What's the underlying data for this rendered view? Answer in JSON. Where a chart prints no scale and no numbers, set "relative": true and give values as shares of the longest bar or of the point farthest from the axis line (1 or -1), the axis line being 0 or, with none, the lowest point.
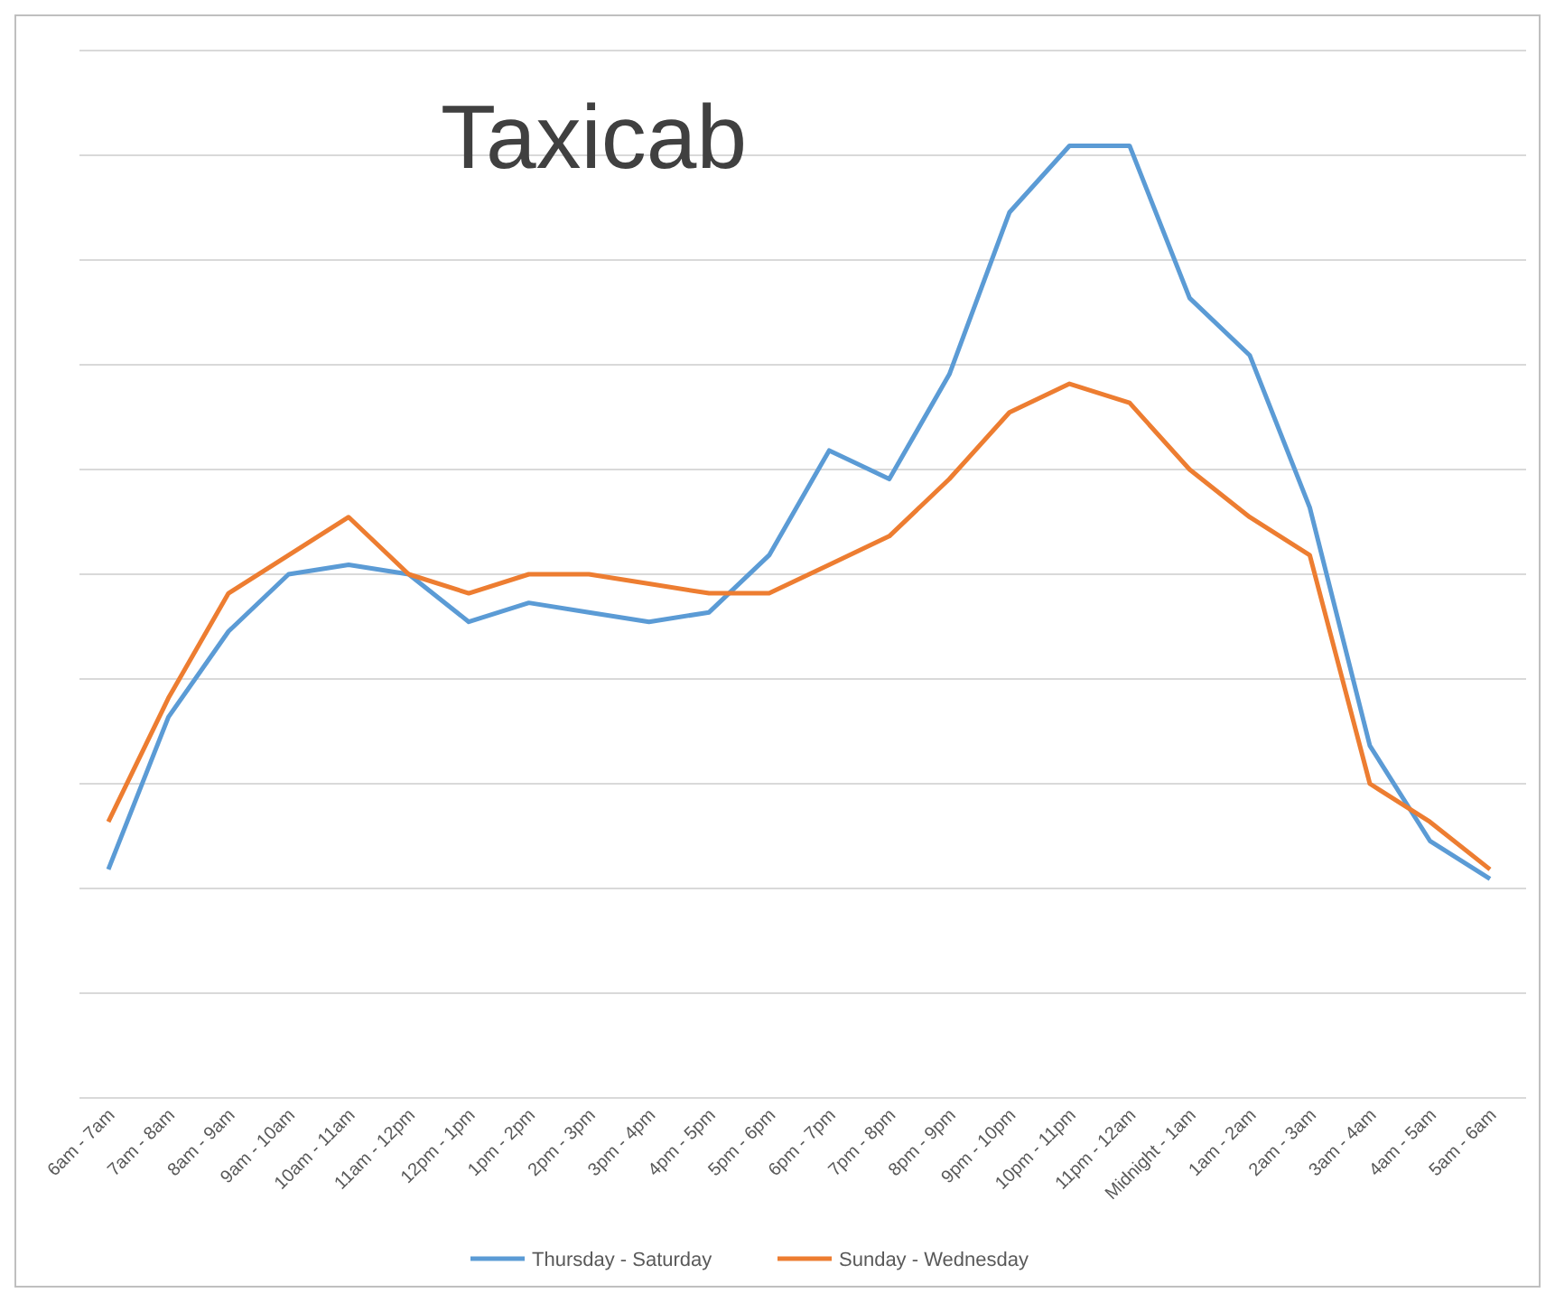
{
  "chart_data": {
    "type": "line",
    "title": "Taxicab",
    "relative": true,
    "grid": "y",
    "legend": "bottom",
    "marker": "none",
    "line_style": "solid",
    "categories": [
      "6am - 7am",
      "7am - 8am",
      "8am - 9am",
      "9am - 10am",
      "10am - 11am",
      "11am - 12pm",
      "12pm - 1pm",
      "1pm - 2pm",
      "2pm - 3pm",
      "3pm - 4pm",
      "4pm - 5pm",
      "5pm - 6pm",
      "6pm - 7pm",
      "7pm - 8pm",
      "8pm - 9pm",
      "9pm - 10pm",
      "10pm - 11pm",
      "11pm - 12am",
      "Midnight - 1am",
      "1am - 2am",
      "2am - 3am",
      "3am - 4am",
      "4am - 5am",
      "5am - 6am"
    ],
    "series": [
      {
        "name": "Thursday - Saturday",
        "color": "#5b9bd5",
        "values": [
          0.24,
          0.4,
          0.49,
          0.55,
          0.56,
          0.55,
          0.5,
          0.52,
          0.51,
          0.5,
          0.51,
          0.57,
          0.68,
          0.65,
          0.76,
          0.93,
          1.0,
          1.0,
          0.84,
          0.78,
          0.62,
          0.37,
          0.27,
          0.23
        ]
      },
      {
        "name": "Sunday - Wednesday",
        "color": "#ed7d31",
        "values": [
          0.29,
          0.42,
          0.53,
          0.57,
          0.61,
          0.55,
          0.53,
          0.55,
          0.55,
          0.54,
          0.53,
          0.53,
          0.56,
          0.59,
          0.65,
          0.72,
          0.75,
          0.73,
          0.66,
          0.61,
          0.57,
          0.33,
          0.29,
          0.24
        ]
      }
    ]
  }
}
